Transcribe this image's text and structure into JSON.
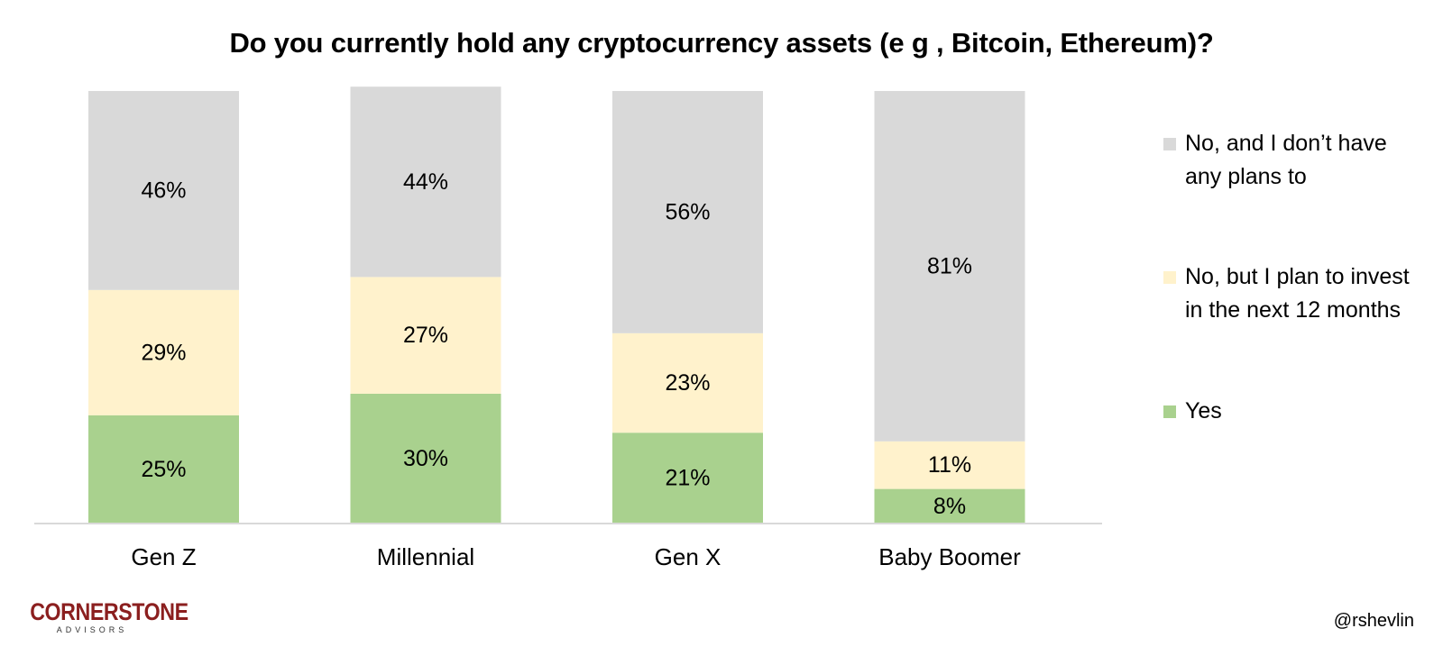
{
  "chart_data": {
    "type": "bar",
    "stacked": true,
    "title": "Do you currently hold any cryptocurrency assets (e g , Bitcoin, Ethereum)?",
    "categories": [
      "Gen Z",
      "Millennial",
      "Gen X",
      "Baby Boomer"
    ],
    "series": [
      {
        "name": "Yes",
        "values": [
          25,
          30,
          21,
          8
        ],
        "labels": [
          "25%",
          "30%",
          "21%",
          "8%"
        ],
        "color": "#a9d18e"
      },
      {
        "name": "No, but I plan to invest in the next 12 months",
        "values": [
          29,
          27,
          23,
          11
        ],
        "labels": [
          "29%",
          "27%",
          "23%",
          "11%"
        ],
        "color": "#fff2cc"
      },
      {
        "name": "No, and I don’t have any plans to",
        "values": [
          46,
          44,
          56,
          81
        ],
        "labels": [
          "46%",
          "44%",
          "56%",
          "81%"
        ],
        "color": "#d9d9d9"
      }
    ],
    "ylim": [
      0,
      100
    ],
    "unit": "%",
    "grid": false,
    "legend_position": "right",
    "legend_order": [
      "No, and I don’t have any plans to",
      "No, but I plan to invest in the next 12 months",
      "Yes"
    ]
  },
  "colors": {
    "axis": "#d9d9d9",
    "logo": "#8b1f1f"
  },
  "footer": {
    "logo_main": "CORNERSTONE",
    "logo_sub": "ADVISORS",
    "credit": "@rshevlin"
  }
}
